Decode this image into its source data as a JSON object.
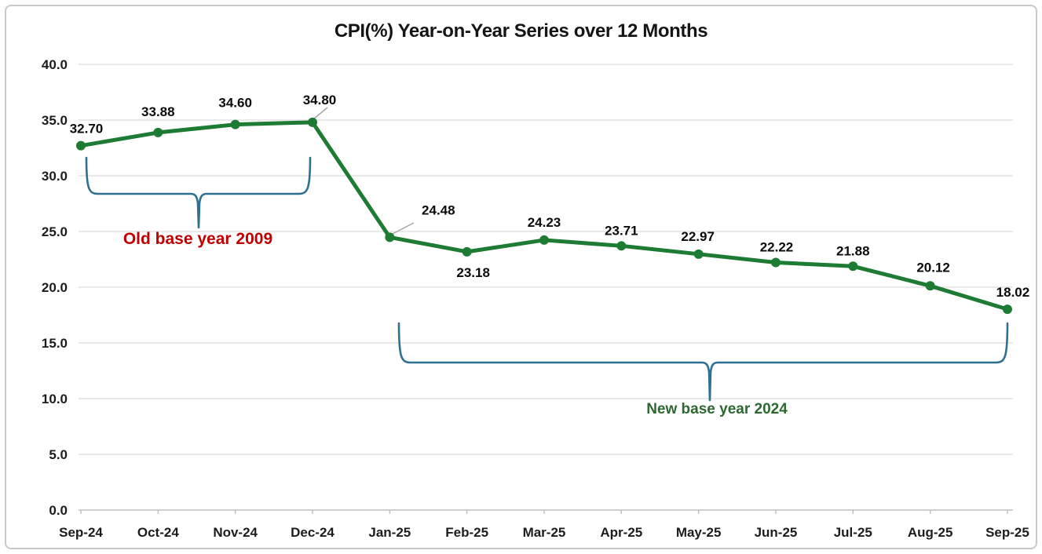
{
  "title": "CPI(%) Year-on-Year Series over 12 Months",
  "chart_data": {
    "type": "line",
    "title": "CPI(%) Year-on-Year Series over 12 Months",
    "categories": [
      "Sep-24",
      "Oct-24",
      "Nov-24",
      "Dec-24",
      "Jan-25",
      "Feb-25",
      "Mar-25",
      "Apr-25",
      "May-25",
      "Jun-25",
      "Jul-25",
      "Aug-25",
      "Sep-25"
    ],
    "series": [
      {
        "name": "CPI(%) Year-on-Year",
        "values": [
          32.7,
          33.88,
          34.6,
          34.8,
          24.48,
          23.18,
          24.23,
          23.71,
          22.97,
          22.22,
          21.88,
          20.12,
          18.02
        ]
      }
    ],
    "y_ticks": [
      0.0,
      5.0,
      10.0,
      15.0,
      20.0,
      25.0,
      30.0,
      35.0,
      40.0
    ],
    "ylim": [
      0,
      40
    ],
    "grid": true,
    "legend": "none",
    "line_color": "#1e7b33",
    "gridline_color": "#dcdcdc",
    "axis_line_color": "#bfbfbf",
    "leader_line_color": "#a6a6a6",
    "annotations": [
      {
        "label": "Old base year 2009",
        "color": "#c00000",
        "brace_color": "#2e708f",
        "span": [
          "Sep-24",
          "Dec-24"
        ]
      },
      {
        "label": "New base year 2024",
        "color": "#2d682f",
        "brace_color": "#2e708f",
        "span": [
          "Jan-25",
          "Sep-25"
        ]
      }
    ]
  }
}
